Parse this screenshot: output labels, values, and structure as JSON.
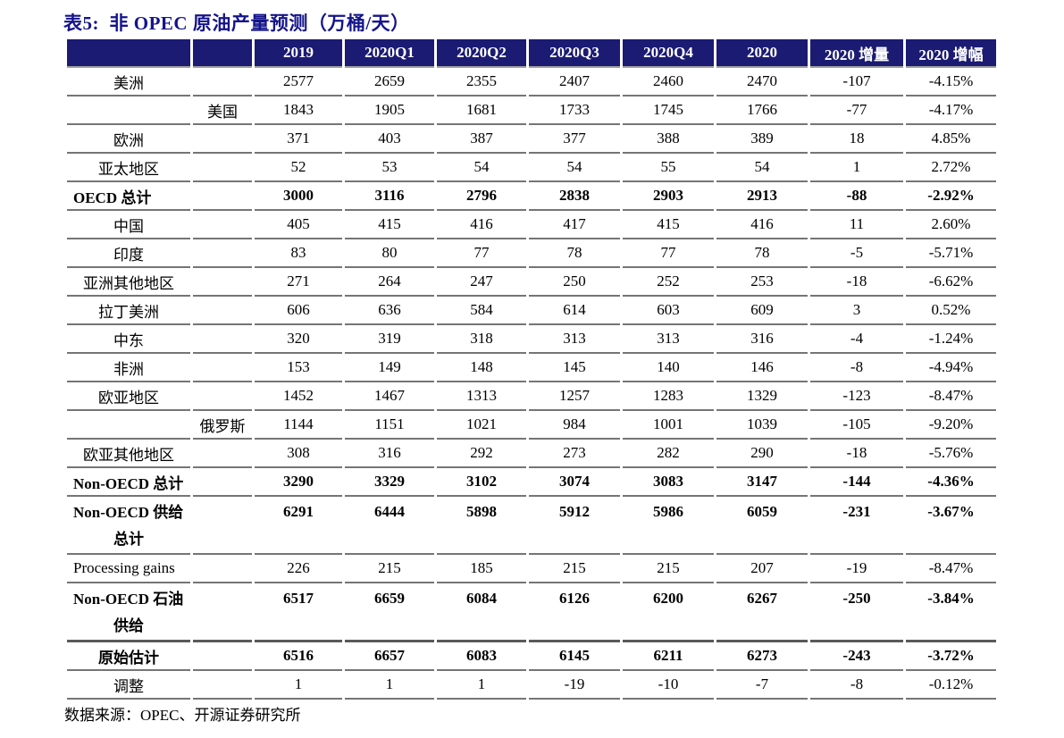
{
  "title": "表5:  非 OPEC 原油产量预测（万桶/天）",
  "colors": {
    "header_bg": "#1B1B73",
    "title_color": "#14148C",
    "rule_color": "#757575",
    "rule_dark": "#5a5a5a"
  },
  "table": {
    "columns": [
      "2019",
      "2020Q1",
      "2020Q2",
      "2020Q3",
      "2020Q4",
      "2020",
      "2020 增量",
      "2020 增幅"
    ],
    "rows": [
      {
        "label": "美洲",
        "label_cell": 1,
        "align": "center",
        "bold": false,
        "values": [
          "2577",
          "2659",
          "2355",
          "2407",
          "2460",
          "2470",
          "-107",
          "-4.15%"
        ]
      },
      {
        "label": "美国",
        "label_cell": 2,
        "align": "center",
        "bold": false,
        "values": [
          "1843",
          "1905",
          "1681",
          "1733",
          "1745",
          "1766",
          "-77",
          "-4.17%"
        ]
      },
      {
        "label": "欧洲",
        "label_cell": 1,
        "align": "center",
        "bold": false,
        "values": [
          "371",
          "403",
          "387",
          "377",
          "388",
          "389",
          "18",
          "4.85%"
        ]
      },
      {
        "label": "亚太地区",
        "label_cell": 1,
        "align": "center",
        "bold": false,
        "values": [
          "52",
          "53",
          "54",
          "54",
          "55",
          "54",
          "1",
          "2.72%"
        ]
      },
      {
        "label": "OECD 总计",
        "label_cell": 1,
        "align": "left",
        "bold": true,
        "values": [
          "3000",
          "3116",
          "2796",
          "2838",
          "2903",
          "2913",
          "-88",
          "-2.92%"
        ]
      },
      {
        "label": "中国",
        "label_cell": 1,
        "align": "center",
        "bold": false,
        "values": [
          "405",
          "415",
          "416",
          "417",
          "415",
          "416",
          "11",
          "2.60%"
        ]
      },
      {
        "label": "印度",
        "label_cell": 1,
        "align": "center",
        "bold": false,
        "values": [
          "83",
          "80",
          "77",
          "78",
          "77",
          "78",
          "-5",
          "-5.71%"
        ]
      },
      {
        "label": "亚洲其他地区",
        "label_cell": 1,
        "align": "center",
        "bold": false,
        "values": [
          "271",
          "264",
          "247",
          "250",
          "252",
          "253",
          "-18",
          "-6.62%"
        ]
      },
      {
        "label": "拉丁美洲",
        "label_cell": 1,
        "align": "center",
        "bold": false,
        "values": [
          "606",
          "636",
          "584",
          "614",
          "603",
          "609",
          "3",
          "0.52%"
        ]
      },
      {
        "label": "中东",
        "label_cell": 1,
        "align": "center",
        "bold": false,
        "values": [
          "320",
          "319",
          "318",
          "313",
          "313",
          "316",
          "-4",
          "-1.24%"
        ]
      },
      {
        "label": "非洲",
        "label_cell": 1,
        "align": "center",
        "bold": false,
        "values": [
          "153",
          "149",
          "148",
          "145",
          "140",
          "146",
          "-8",
          "-4.94%"
        ]
      },
      {
        "label": "欧亚地区",
        "label_cell": 1,
        "align": "center",
        "bold": false,
        "values": [
          "1452",
          "1467",
          "1313",
          "1257",
          "1283",
          "1329",
          "-123",
          "-8.47%"
        ]
      },
      {
        "label": "俄罗斯",
        "label_cell": 2,
        "align": "center",
        "bold": false,
        "values": [
          "1144",
          "1151",
          "1021",
          "984",
          "1001",
          "1039",
          "-105",
          "-9.20%"
        ]
      },
      {
        "label": "欧亚其他地区",
        "label_cell": 1,
        "align": "center",
        "bold": false,
        "values": [
          "308",
          "316",
          "292",
          "273",
          "282",
          "290",
          "-18",
          "-5.76%"
        ]
      },
      {
        "label": "Non-OECD 总计",
        "label_cell": 1,
        "align": "left",
        "bold": true,
        "values": [
          "3290",
          "3329",
          "3102",
          "3074",
          "3083",
          "3147",
          "-144",
          "-4.36%"
        ]
      },
      {
        "label": "Non-OECD 供给",
        "label_line2": "总计",
        "two_line": true,
        "label_cell": 1,
        "align": "left",
        "bold": true,
        "values": [
          "6291",
          "6444",
          "5898",
          "5912",
          "5986",
          "6059",
          "-231",
          "-3.67%"
        ]
      },
      {
        "label": "Processing gains",
        "label_cell": 1,
        "align": "left",
        "bold": false,
        "values": [
          "226",
          "215",
          "185",
          "215",
          "215",
          "207",
          "-19",
          "-8.47%"
        ]
      },
      {
        "label": "Non-OECD 石油",
        "label_line2": "供给",
        "two_line": true,
        "label_cell": 1,
        "align": "left",
        "bold": true,
        "thick_bottom": true,
        "values": [
          "6517",
          "6659",
          "6084",
          "6126",
          "6200",
          "6267",
          "-250",
          "-3.84%"
        ]
      },
      {
        "label": "原始估计",
        "label_cell": 1,
        "align": "center",
        "bold": true,
        "values": [
          "6516",
          "6657",
          "6083",
          "6145",
          "6211",
          "6273",
          "-243",
          "-3.72%"
        ]
      },
      {
        "label": "调整",
        "label_cell": 1,
        "align": "center",
        "bold": false,
        "values": [
          "1",
          "1",
          "1",
          "-19",
          "-10",
          "-7",
          "-8",
          "-0.12%"
        ]
      }
    ]
  },
  "footer": {
    "source": "数据来源：OPEC、开源证券研究所"
  }
}
